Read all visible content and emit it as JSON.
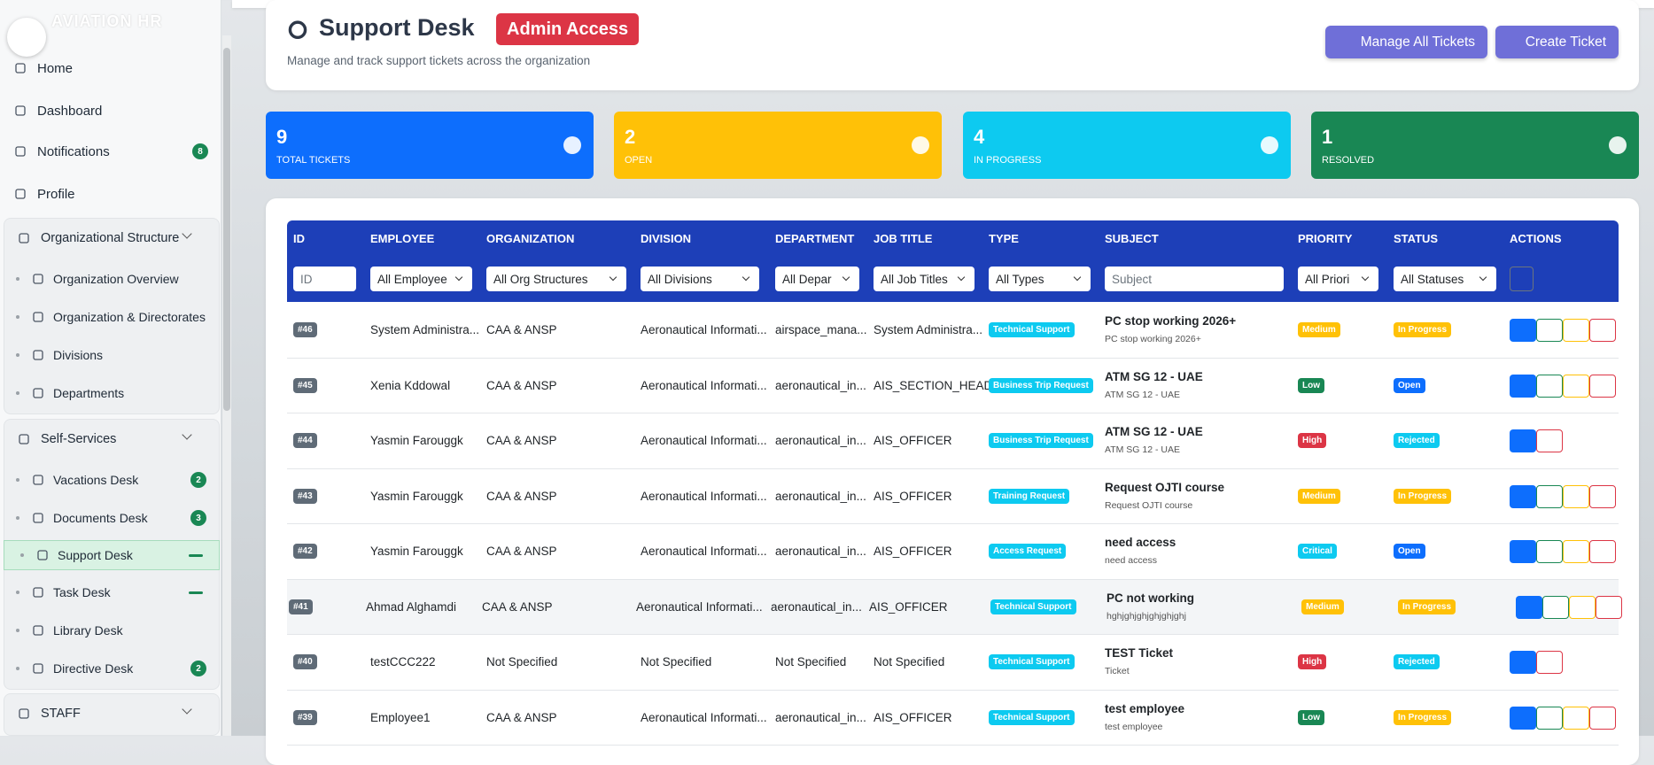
{
  "sidebar": {
    "brand": "AVIATION HR",
    "items": [
      {
        "label": "Home"
      },
      {
        "label": "Dashboard"
      },
      {
        "label": "Notifications",
        "badge": 8
      },
      {
        "label": "Profile"
      }
    ],
    "sections": [
      {
        "title": "Organizational Structure",
        "items": [
          {
            "label": "Organization Overview"
          },
          {
            "label": "Organization & Directorates"
          },
          {
            "label": "Divisions"
          },
          {
            "label": "Departments"
          }
        ]
      },
      {
        "title": "Self-Services",
        "items": [
          {
            "label": "Vacations Desk",
            "badge": 2
          },
          {
            "label": "Documents Desk",
            "badge": 3
          },
          {
            "label": "Support Desk",
            "active": true,
            "indicator": true
          },
          {
            "label": "Task Desk",
            "indicator": true
          },
          {
            "label": "Library Desk"
          },
          {
            "label": "Directive Desk",
            "badge": 2
          }
        ]
      },
      {
        "title": "STAFF",
        "items": []
      }
    ]
  },
  "header": {
    "title": "Support Desk",
    "badge": "Admin Access",
    "subtitle": "Manage and track support tickets across the organization",
    "buttons": [
      "Manage All Tickets",
      "Create Ticket"
    ]
  },
  "stats": [
    {
      "value": 9,
      "label": "TOTAL TICKETS",
      "color": "#0d6efd"
    },
    {
      "value": 2,
      "label": "OPEN",
      "color": "#ffc107"
    },
    {
      "value": 4,
      "label": "IN PROGRESS",
      "color": "#0dcaf0"
    },
    {
      "value": 1,
      "label": "RESOLVED",
      "color": "#198754"
    }
  ],
  "table": {
    "columns": [
      "ID",
      "EMPLOYEE",
      "ORGANIZATION",
      "DIVISION",
      "DEPARTMENT",
      "JOB TITLE",
      "TYPE",
      "SUBJECT",
      "PRIORITY",
      "STATUS",
      "ACTIONS"
    ],
    "filters": [
      "ID",
      "All Employee",
      "All Org Structures",
      "All Divisions",
      "All Depar",
      "All Job Titles",
      "All Types",
      "Subject",
      "All Priori",
      "All Statuses"
    ],
    "rows": [
      {
        "id": "#46",
        "employee": "System Administra...",
        "organization": "CAA & ANSP",
        "division": "Aeronautical Informati...",
        "department": "airspace_mana...",
        "job": "System Administra...",
        "type": "Technical Support",
        "subject": "PC stop working 2026+",
        "detail": "PC stop working 2026+",
        "priority": "Medium",
        "status": "In Progress",
        "actions": "full"
      },
      {
        "id": "#45",
        "employee": "Xenia Kddowal",
        "organization": "CAA & ANSP",
        "division": "Aeronautical Informati...",
        "department": "aeronautical_in...",
        "job": "AIS_SECTION_HEAD",
        "type": "Business Trip Request",
        "subject": "ATM SG 12 - UAE",
        "detail": "ATM SG 12 - UAE",
        "priority": "Low",
        "status": "Open",
        "actions": "full"
      },
      {
        "id": "#44",
        "employee": "Yasmin Farouggk",
        "organization": "CAA & ANSP",
        "division": "Aeronautical Informati...",
        "department": "aeronautical_in...",
        "job": "AIS_OFFICER",
        "type": "Business Trip Request",
        "subject": "ATM SG 12 - UAE",
        "detail": "ATM SG 12 - UAE",
        "priority": "High",
        "status": "Rejected",
        "actions": "view-delete"
      },
      {
        "id": "#43",
        "employee": "Yasmin Farouggk",
        "organization": "CAA & ANSP",
        "division": "Aeronautical Informati...",
        "department": "aeronautical_in...",
        "job": "AIS_OFFICER",
        "type": "Training Request",
        "subject": "Request OJTI course",
        "detail": "Request OJTI course",
        "priority": "Medium",
        "status": "In Progress",
        "actions": "full"
      },
      {
        "id": "#42",
        "employee": "Yasmin Farouggk",
        "organization": "CAA & ANSP",
        "division": "Aeronautical Informati...",
        "department": "aeronautical_in...",
        "job": "AIS_OFFICER",
        "type": "Access Request",
        "subject": "need access",
        "detail": "need access",
        "priority": "Critical",
        "status": "Open",
        "actions": "full"
      },
      {
        "id": "#41",
        "employee": "Ahmad Alghamdi",
        "organization": "CAA & ANSP",
        "division": "Aeronautical Informati...",
        "department": "aeronautical_in...",
        "job": "AIS_OFFICER",
        "type": "Technical Support",
        "subject": "PC not working",
        "detail": "hghjghjghjghjghjghj",
        "priority": "Medium",
        "status": "In Progress",
        "actions": "full",
        "hover": true
      },
      {
        "id": "#40",
        "employee": "testCCC222",
        "organization": "Not Specified",
        "division": "Not Specified",
        "department": "Not Specified",
        "job": "Not Specified",
        "type": "Technical Support",
        "subject": "TEST Ticket",
        "detail": "Ticket",
        "priority": "High",
        "status": "Rejected",
        "actions": "view-delete"
      },
      {
        "id": "#39",
        "employee": "Employee1",
        "organization": "CAA & ANSP",
        "division": "Aeronautical Informati...",
        "department": "aeronautical_in...",
        "job": "AIS_OFFICER",
        "type": "Technical Support",
        "subject": "test employee",
        "detail": "test employee",
        "priority": "Low",
        "status": "In Progress",
        "actions": "full"
      }
    ]
  }
}
